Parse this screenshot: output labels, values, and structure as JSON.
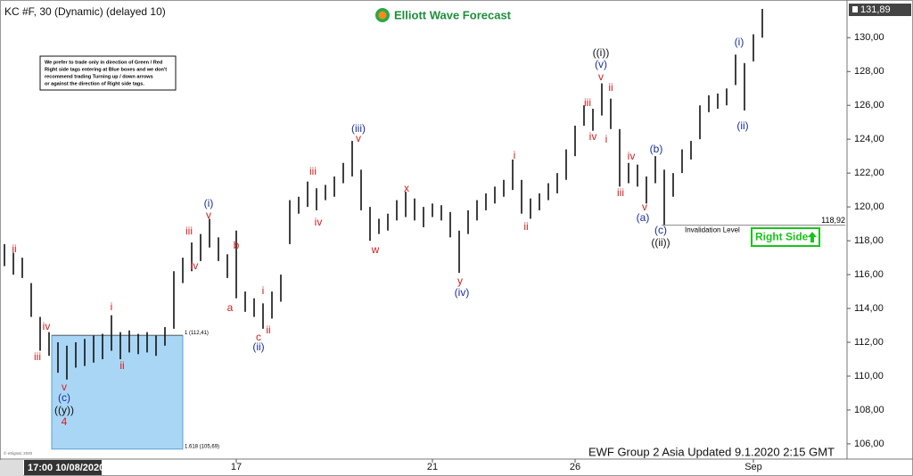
{
  "chart_data": {
    "type": "range_bar",
    "header": "KC #F, 30 (Dynamic) (delayed 10)",
    "logo": "Elliott Wave Forecast",
    "note": [
      "We prefer to trade only in direction of Green / Red",
      "Right side tags entering at Blue boxes and we don't",
      "recommend trading Turning up / down arrows",
      "or against the direction of Right side tags."
    ],
    "footer": "EWF Group 2 Asia Updated 9.1.2020 2:15 GMT",
    "cursor_time": "17:00 10/08/2020",
    "copyright": "© eSignal, 2020",
    "bar_color": "#111111",
    "ylim": [
      105.1,
      131.7
    ],
    "yticks": [
      {
        "value": 106,
        "label": "106,00"
      },
      {
        "value": 108,
        "label": "108,00"
      },
      {
        "value": 110,
        "label": "110,00"
      },
      {
        "value": 112,
        "label": "112,00"
      },
      {
        "value": 114,
        "label": "114,00"
      },
      {
        "value": 116,
        "label": "116,00"
      },
      {
        "value": 118,
        "label": "118,00"
      },
      {
        "value": 120,
        "label": "120,00"
      },
      {
        "value": 122,
        "label": "122,00"
      },
      {
        "value": 124,
        "label": "124,00"
      },
      {
        "value": 126,
        "label": "126,00"
      },
      {
        "value": 128,
        "label": "128,00"
      },
      {
        "value": 130,
        "label": "130,00"
      }
    ],
    "xlim": [
      -0.5,
      94
    ],
    "xticks": [
      {
        "value": 26,
        "label": "17"
      },
      {
        "value": 48,
        "label": "21"
      },
      {
        "value": 64,
        "label": "26"
      },
      {
        "value": 84,
        "label": "Sep"
      }
    ],
    "low": [
      116.5,
      116,
      115.8,
      113.5,
      111.5,
      111.2,
      110.2,
      109.8,
      110.5,
      110.6,
      110.8,
      111,
      111.5,
      111,
      111.4,
      111.3,
      111.4,
      111.2,
      111.8,
      112.8,
      115.5,
      116.2,
      116.8,
      117.6,
      116.8,
      115.8,
      114.6,
      113.8,
      113.5,
      112.8,
      113.4,
      114.4,
      117.8,
      119.6,
      120,
      119.8,
      120.4,
      120.6,
      121.4,
      121.8,
      119.8,
      118,
      118.4,
      118.6,
      119.2,
      119.4,
      119.2,
      118.8,
      119.4,
      119.2,
      118.2,
      116.1,
      118.4,
      119.2,
      119.8,
      120.2,
      120.6,
      121,
      119.6,
      119.3,
      119.8,
      120.4,
      120.8,
      121.6,
      123,
      124.8,
      124.5,
      125.4,
      124.6,
      121.2,
      121.4,
      121.2,
      120.2,
      121.4,
      118.9,
      120.6,
      122,
      122.8,
      124,
      125.6,
      125.8,
      126,
      127.2,
      125.7,
      128.6,
      130
    ],
    "high": [
      117.8,
      117.3,
      117,
      115.5,
      113.5,
      112.6,
      112,
      111.8,
      112,
      112.2,
      112.4,
      112.5,
      113.6,
      112.6,
      112.7,
      112.5,
      112.6,
      112.4,
      112.9,
      116.2,
      117,
      117.9,
      118.4,
      119.3,
      118.2,
      117.2,
      118.6,
      115,
      114.6,
      114.3,
      115,
      116,
      120.4,
      120.6,
      121.5,
      121.1,
      121.3,
      121.8,
      122.6,
      123.9,
      122.2,
      120,
      119.3,
      119.6,
      120.4,
      120.9,
      120.5,
      120,
      120.2,
      120.1,
      119.7,
      118.6,
      119.8,
      120.4,
      120.8,
      121.2,
      121.6,
      122.8,
      121.6,
      120.5,
      120.8,
      121.4,
      122,
      123.4,
      124.8,
      126,
      125.8,
      127.3,
      126.4,
      124.6,
      122.6,
      122.5,
      121.8,
      123,
      122.2,
      122,
      123.4,
      123.9,
      126,
      126.6,
      126.7,
      127,
      129,
      128.5,
      130.2,
      131.7
    ],
    "last_price": {
      "value": 131.89,
      "label": "131,89"
    },
    "blue_box": {
      "top": {
        "value": 112.41,
        "label": "1 (112,41)"
      },
      "bottom": {
        "value": 105.69,
        "label": "1.618 (105,69)"
      },
      "color": "#a9d6f5"
    },
    "invalidation": {
      "value": 118.92,
      "label": "118,92",
      "text": "Invalidation Level"
    },
    "right_side": {
      "text": "Right Side",
      "color": "#18c418"
    },
    "wave_labels": [
      {
        "text": "ii",
        "color": "#d42020"
      },
      {
        "text": "iii",
        "color": "#d42020"
      },
      {
        "text": "iv",
        "color": "#d42020"
      },
      {
        "text": "v",
        "color": "#d42020"
      },
      {
        "text": "(c)",
        "color": "#1b2f9c"
      },
      {
        "text": "((y))",
        "color": "#111111"
      },
      {
        "text": "4",
        "color": "#d42020"
      },
      {
        "text": "i",
        "color": "#d42020"
      },
      {
        "text": "ii",
        "color": "#d42020"
      },
      {
        "text": "iii",
        "color": "#d42020"
      },
      {
        "text": "iv",
        "color": "#d42020"
      },
      {
        "text": "(i)",
        "color": "#1b2f9c"
      },
      {
        "text": "v",
        "color": "#d42020"
      },
      {
        "text": "b",
        "color": "#d42020"
      },
      {
        "text": "a",
        "color": "#d42020"
      },
      {
        "text": "c",
        "color": "#d42020"
      },
      {
        "text": "(ii)",
        "color": "#1b2f9c"
      },
      {
        "text": "i",
        "color": "#d42020"
      },
      {
        "text": "ii",
        "color": "#d42020"
      },
      {
        "text": "iii",
        "color": "#d42020"
      },
      {
        "text": "iv",
        "color": "#d42020"
      },
      {
        "text": "(iii)",
        "color": "#1b2f9c"
      },
      {
        "text": "v",
        "color": "#d42020"
      },
      {
        "text": "x",
        "color": "#d42020"
      },
      {
        "text": "w",
        "color": "#d42020"
      },
      {
        "text": "y",
        "color": "#d42020"
      },
      {
        "text": "(iv)",
        "color": "#1b2f9c"
      },
      {
        "text": "i",
        "color": "#d42020"
      },
      {
        "text": "ii",
        "color": "#d42020"
      },
      {
        "text": "iii",
        "color": "#d42020"
      },
      {
        "text": "iv",
        "color": "#d42020"
      },
      {
        "text": "((i))",
        "color": "#111111"
      },
      {
        "text": "(v)",
        "color": "#1b2f9c"
      },
      {
        "text": "v",
        "color": "#d42020"
      },
      {
        "text": "ii",
        "color": "#d42020"
      },
      {
        "text": "i",
        "color": "#d42020"
      },
      {
        "text": "iii",
        "color": "#d42020"
      },
      {
        "text": "iv",
        "color": "#d42020"
      },
      {
        "text": "v",
        "color": "#d42020"
      },
      {
        "text": "(b)",
        "color": "#1b2f9c"
      },
      {
        "text": "(a)",
        "color": "#1b2f9c"
      },
      {
        "text": "(c)",
        "color": "#1b2f9c"
      },
      {
        "text": "((ii))",
        "color": "#111111"
      },
      {
        "text": "(i)",
        "color": "#1b2f9c"
      },
      {
        "text": "(ii)",
        "color": "#1b2f9c"
      }
    ]
  }
}
